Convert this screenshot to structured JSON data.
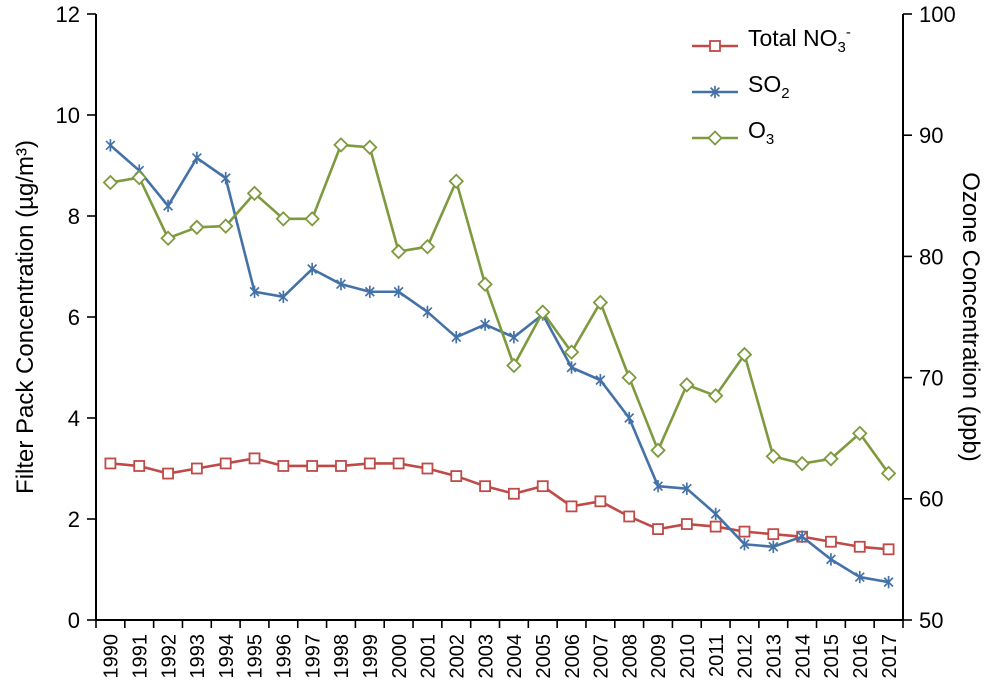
{
  "chart_data": {
    "type": "line",
    "title": "",
    "grid": false,
    "legend_position": "top-right",
    "x": [
      1990,
      1991,
      1992,
      1993,
      1994,
      1995,
      1996,
      1997,
      1998,
      1999,
      2000,
      2001,
      2002,
      2003,
      2004,
      2005,
      2006,
      2007,
      2008,
      2009,
      2010,
      2011,
      2012,
      2013,
      2014,
      2015,
      2016,
      2017
    ],
    "left_axis": {
      "title": "Filter Pack Concentration (µg/m³)",
      "min": 0,
      "max": 12,
      "ticks": [
        0,
        2,
        4,
        6,
        8,
        10,
        12
      ]
    },
    "right_axis": {
      "title": "Ozone Concentration (ppb)",
      "min": 50,
      "max": 100,
      "ticks": [
        50,
        60,
        70,
        80,
        90,
        100
      ]
    },
    "series": [
      {
        "name": "Total NO3-",
        "label_parts": [
          {
            "t": "Total NO"
          },
          {
            "s": "3"
          },
          {
            "p": "-"
          }
        ],
        "axis": "left",
        "color": "#be4b48",
        "marker": "square",
        "values": [
          3.1,
          3.05,
          2.9,
          3.0,
          3.1,
          3.2,
          3.05,
          3.05,
          3.05,
          3.1,
          3.1,
          3.0,
          2.85,
          2.65,
          2.5,
          2.65,
          2.25,
          2.35,
          2.05,
          1.8,
          1.9,
          1.85,
          1.75,
          1.7,
          1.65,
          1.55,
          1.45,
          1.4
        ]
      },
      {
        "name": "SO2",
        "label_parts": [
          {
            "t": "SO"
          },
          {
            "s": "2"
          }
        ],
        "axis": "left",
        "color": "#4472a8",
        "marker": "asterisk",
        "values": [
          9.4,
          8.9,
          8.2,
          9.15,
          8.75,
          6.5,
          6.4,
          6.95,
          6.65,
          6.5,
          6.5,
          6.1,
          5.6,
          5.85,
          5.6,
          6.05,
          5.0,
          4.75,
          4.0,
          2.65,
          2.6,
          2.1,
          1.5,
          1.45,
          1.65,
          1.2,
          0.85,
          0.75
        ]
      },
      {
        "name": "O3",
        "label_parts": [
          {
            "t": "O"
          },
          {
            "s": "3"
          }
        ],
        "axis": "right",
        "color": "#7e9a3f",
        "marker": "diamond",
        "values": [
          86.1,
          86.5,
          81.5,
          82.4,
          82.5,
          85.2,
          83.1,
          83.1,
          89.2,
          89.0,
          80.4,
          80.8,
          86.2,
          77.7,
          71.0,
          75.4,
          72.1,
          76.2,
          70.0,
          64.0,
          69.4,
          68.5,
          71.9,
          63.5,
          62.9,
          63.3,
          65.4,
          62.1
        ]
      }
    ]
  }
}
